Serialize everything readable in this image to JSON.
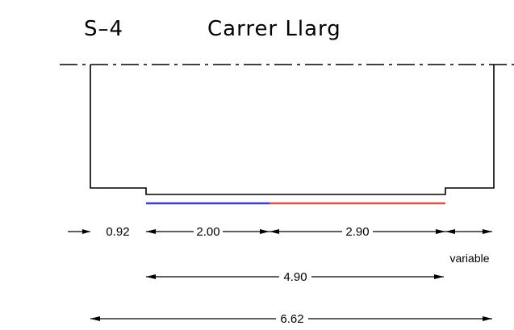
{
  "header": {
    "section_code": "S–4",
    "street_name": "Carrer  Llarg"
  },
  "profile": {
    "blue_segment_color": "#3a3ae0",
    "red_segment_color": "#e84a4a"
  },
  "dimensions": {
    "left_offset": "0.92",
    "blue_width": "2.00",
    "red_width": "2.90",
    "right_label": "variable",
    "carriageway_total": "4.90",
    "overall_total": "6.62"
  }
}
